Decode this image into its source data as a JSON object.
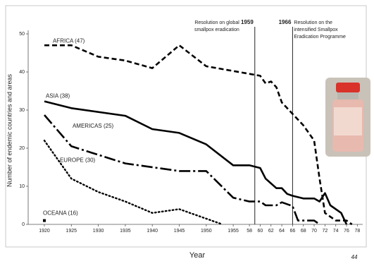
{
  "chart_data": {
    "type": "line",
    "y_label": "Number of endemic countries and areas",
    "x_label": "Year",
    "page_number": "44",
    "xlim": [
      1917,
      1979
    ],
    "ylim": [
      0,
      50
    ],
    "yticks": [
      0,
      10,
      20,
      30,
      40,
      50
    ],
    "xticks": [
      1920,
      1925,
      1930,
      1935,
      1940,
      1945,
      1950,
      1955,
      {
        "value": 1958,
        "label": "58"
      },
      {
        "value": 1960,
        "label": "60"
      },
      {
        "value": 1962,
        "label": "62"
      },
      {
        "value": 1964,
        "label": "64"
      },
      {
        "value": 1966,
        "label": "66"
      },
      {
        "value": 1968,
        "label": "68"
      },
      {
        "value": 1970,
        "label": "70"
      },
      {
        "value": 1972,
        "label": "72"
      },
      {
        "value": 1974,
        "label": "74"
      },
      {
        "value": 1976,
        "label": "76"
      },
      {
        "value": 1978,
        "label": "78"
      }
    ],
    "annotations": [
      {
        "x": 1959,
        "text": [
          "Resolution on global",
          "smallpox eradication"
        ]
      },
      {
        "x": 1966,
        "text": [
          "Resolution on the",
          "intensified Smallpox",
          "Eradication Programme"
        ]
      }
    ],
    "series": [
      {
        "name": "AFRICA (47)",
        "color": "#000000",
        "style": "dashed",
        "x": [
          1920,
          1925,
          1930,
          1935,
          1940,
          1945,
          1950,
          1958,
          1960,
          1961,
          1962,
          1963,
          1964,
          1966,
          1968,
          1970,
          1971,
          1972,
          1974,
          1976,
          1977
        ],
        "values": [
          47,
          47,
          44,
          43,
          41,
          47,
          41.5,
          39.5,
          39,
          37,
          37.5,
          36,
          32,
          29,
          26,
          22,
          12,
          3,
          1,
          1,
          0
        ]
      },
      {
        "name": "ASIA (38)",
        "color": "#000000",
        "style": "solid",
        "x": [
          1920,
          1925,
          1935,
          1940,
          1945,
          1950,
          1955,
          1958,
          1960,
          1961,
          1963,
          1964,
          1965,
          1966,
          1968,
          1970,
          1971,
          1972,
          1973,
          1975,
          1976
        ],
        "values": [
          32.3,
          30.5,
          28.5,
          25,
          24,
          21,
          15.5,
          15.5,
          14.8,
          12,
          9.5,
          9.5,
          8,
          7.5,
          6.8,
          6.8,
          6,
          8.2,
          5,
          3,
          0
        ]
      },
      {
        "name": "AMERICAS (25)",
        "color": "#000000",
        "style": "dashdot",
        "x": [
          1920,
          1925,
          1935,
          1945,
          1950,
          1955,
          1958,
          1960,
          1961,
          1963,
          1964,
          1966,
          1967,
          1970,
          1971
        ],
        "values": [
          28.7,
          20.5,
          16,
          14,
          14,
          7,
          6,
          6,
          5,
          5,
          5.8,
          4.8,
          1,
          1,
          0
        ]
      },
      {
        "name": "EUROPE (30)",
        "color": "#000000",
        "style": "dotted",
        "x": [
          1920,
          1925,
          1930,
          1935,
          1940,
          1945,
          1950,
          1953
        ],
        "values": [
          22,
          12,
          8.5,
          6,
          3,
          4,
          1.5,
          0
        ]
      },
      {
        "name": "OCEANA (16)",
        "color": "#000000",
        "style": "point",
        "x": [
          1920
        ],
        "values": [
          1
        ]
      }
    ]
  }
}
